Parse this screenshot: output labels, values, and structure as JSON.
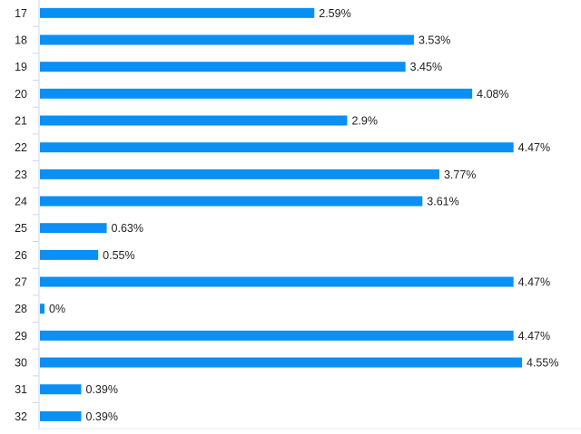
{
  "chart_data": {
    "type": "bar",
    "orientation": "horizontal",
    "title": "",
    "xlabel": "",
    "ylabel": "",
    "categories": [
      "17",
      "18",
      "19",
      "20",
      "21",
      "22",
      "23",
      "24",
      "25",
      "26",
      "27",
      "28",
      "29",
      "30",
      "31",
      "32"
    ],
    "values": [
      2.59,
      3.53,
      3.45,
      4.08,
      2.9,
      4.47,
      3.77,
      3.61,
      0.63,
      0.55,
      4.47,
      0,
      4.47,
      4.55,
      0.39,
      0.39
    ],
    "labels": [
      "2.59%",
      "3.53%",
      "3.45%",
      "4.08%",
      "2.9%",
      "4.47%",
      "3.77%",
      "3.61%",
      "0.63%",
      "0.55%",
      "4.47%",
      "0%",
      "4.47%",
      "4.55%",
      "0.39%",
      "0.39%"
    ],
    "xlim": [
      0,
      4.55
    ],
    "bar_color": "#0a8ff5",
    "axis_color": "#c8d8f0",
    "grid": false
  }
}
